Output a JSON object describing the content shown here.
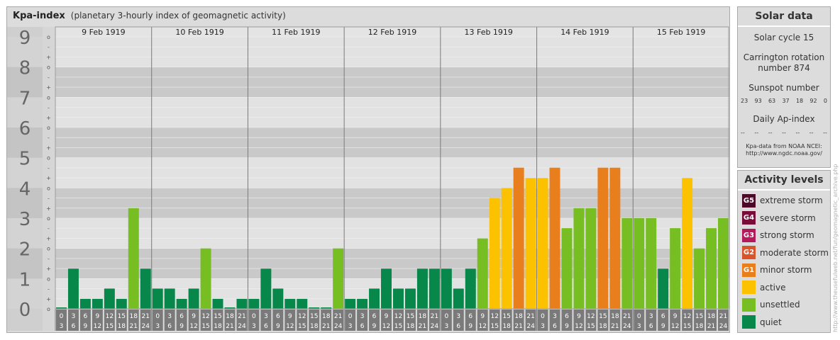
{
  "header": {
    "title": "Kpa-index",
    "subtitle": "(planetary 3-hourly index of geomagnetic activity)"
  },
  "colors": {
    "quiet": "#07884a",
    "unsettled": "#76be21",
    "active": "#fcc200",
    "minor_storm": "#e97e1d",
    "moderate_storm": "#d9542a",
    "strong_storm": "#b5195b",
    "severe_storm": "#7a0c3a",
    "extreme_storm": "#4a0a28"
  },
  "chart_data": {
    "type": "bar",
    "title": "Kpa-index",
    "subtitle": "(planetary 3-hourly index of geomagnetic activity)",
    "ylim": [
      0,
      9
    ],
    "y_ticks": [
      "0",
      "1",
      "2",
      "3",
      "4",
      "5",
      "6",
      "7",
      "8",
      "9"
    ],
    "sub_ticks": [
      "-",
      "o",
      "+"
    ],
    "days": [
      "9 Feb 1919",
      "10 Feb 1919",
      "11 Feb 1919",
      "12 Feb 1919",
      "13 Feb 1919",
      "14 Feb 1919",
      "15 Feb 1919"
    ],
    "time_slots": [
      [
        "0",
        "3"
      ],
      [
        "3",
        "6"
      ],
      [
        "6",
        "9"
      ],
      [
        "9",
        "12"
      ],
      [
        "12",
        "15"
      ],
      [
        "15",
        "18"
      ],
      [
        "18",
        "21"
      ],
      [
        "21",
        "24"
      ]
    ],
    "values": [
      [
        0.0,
        1.33,
        0.33,
        0.33,
        0.67,
        0.33,
        3.33,
        1.33
      ],
      [
        0.67,
        0.67,
        0.33,
        0.67,
        2.0,
        0.33,
        0.0,
        0.33
      ],
      [
        0.33,
        1.33,
        0.67,
        0.33,
        0.33,
        0.0,
        0.0,
        2.0
      ],
      [
        0.33,
        0.33,
        0.67,
        1.33,
        0.67,
        0.67,
        1.33,
        1.33
      ],
      [
        1.33,
        0.67,
        1.33,
        2.33,
        3.67,
        4.0,
        4.67,
        4.33
      ],
      [
        4.33,
        4.67,
        2.67,
        3.33,
        3.33,
        4.67,
        4.67,
        3.0
      ],
      [
        3.0,
        3.0,
        1.33,
        2.67,
        4.33,
        2.0,
        2.67,
        3.0
      ]
    ]
  },
  "solar": {
    "title": "Solar data",
    "cycle": "Solar cycle 15",
    "carrington_1": "Carrington rotation",
    "carrington_2": "number 874",
    "sunspot_title": "Sunspot number",
    "sunspots": [
      "23",
      "93",
      "63",
      "37",
      "18",
      "92",
      "0"
    ],
    "ap_title": "Daily Ap-index",
    "ap": [
      "--",
      "--",
      "--",
      "--",
      "--",
      "--",
      "--"
    ],
    "source_1": "Kpa-data from NOAA NCEI:",
    "source_2": "http://www.ngdc.noaa.gov/"
  },
  "activity": {
    "title": "Activity levels",
    "levels": [
      {
        "badge": "G5",
        "label": "extreme storm",
        "color": "#4a0a28"
      },
      {
        "badge": "G4",
        "label": "severe storm",
        "color": "#7a0c3a"
      },
      {
        "badge": "G3",
        "label": "strong storm",
        "color": "#b5195b"
      },
      {
        "badge": "G2",
        "label": "moderate storm",
        "color": "#d9542a"
      },
      {
        "badge": "G1",
        "label": "minor storm",
        "color": "#e97e1d"
      },
      {
        "badge": "",
        "label": "active",
        "color": "#fcc200"
      },
      {
        "badge": "",
        "label": "unsettled",
        "color": "#76be21"
      },
      {
        "badge": "",
        "label": "quiet",
        "color": "#07884a"
      }
    ]
  },
  "credit": "http://www.theusefulweb.net/fun/geomagnetic_archive.php"
}
